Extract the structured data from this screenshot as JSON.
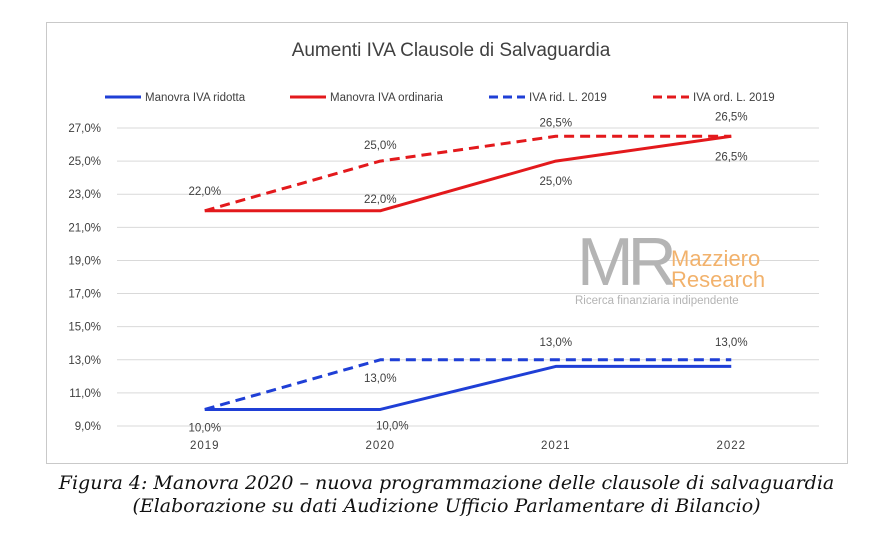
{
  "chart_data": {
    "type": "line",
    "title": "Aumenti IVA Clausole di Salvaguardia",
    "x": [
      "2019",
      "2020",
      "2021",
      "2022"
    ],
    "ylim": [
      9,
      27
    ],
    "yticks": [
      "27,0%",
      "25,0%",
      "23,0%",
      "21,0%",
      "19,0%",
      "17,0%",
      "15,0%",
      "13,0%",
      "11,0%",
      "9,0%"
    ],
    "grid": true,
    "legend_position": "top",
    "series": [
      {
        "name": "Manovra IVA ridotta",
        "color": "#1f3fd6",
        "dash": false,
        "values": [
          10,
          10,
          12.6,
          12.6
        ],
        "labels": [
          "",
          "10,0%",
          "",
          ""
        ]
      },
      {
        "name": "Manovra IVA ordinaria",
        "color": "#e3191c",
        "dash": false,
        "values": [
          22,
          22,
          25,
          26.5
        ],
        "labels": [
          "",
          "22,0%",
          "25,0%",
          "26,5%"
        ]
      },
      {
        "name": "IVA rid. L. 2019",
        "color": "#1f3fd6",
        "dash": true,
        "values": [
          10,
          13,
          13,
          13
        ],
        "labels": [
          "10,0%",
          "13,0%",
          "13,0%",
          "13,0%"
        ]
      },
      {
        "name": "IVA ord. L. 2019",
        "color": "#e3191c",
        "dash": true,
        "values": [
          22,
          25,
          26.5,
          26.5
        ],
        "labels": [
          "22,0%",
          "25,0%",
          "26,5%",
          "26,5%"
        ]
      }
    ]
  },
  "watermark": {
    "mark": "MR",
    "line1": "Mazziero",
    "line2": "Research",
    "tagline": "Ricerca finanziaria indipendente",
    "color_gray": "#b4b4b4",
    "color_orange": "#f2b26c"
  },
  "caption": {
    "line1": "Figura 4: Manovra 2020 – nuova programmazione delle clausole di salvaguardia",
    "line2": "(Elaborazione su dati Audizione Ufficio Parlamentare di Bilancio)"
  }
}
